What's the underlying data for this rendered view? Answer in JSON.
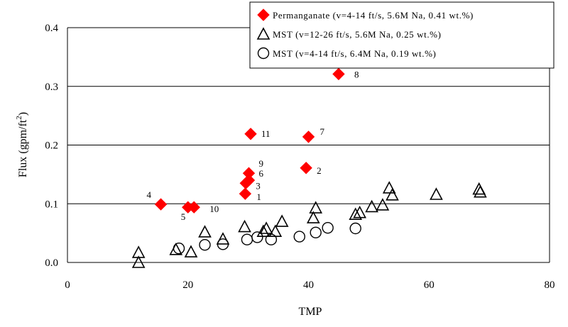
{
  "chart_data": {
    "type": "scatter",
    "xlabel": "TMP",
    "ylabel": "Flux (gpm/ft",
    "ylabel_sup": "2",
    "ylabel_end": ")",
    "xlim": [
      0,
      80
    ],
    "ylim": [
      0,
      0.4
    ],
    "x_ticks": [
      0,
      20,
      40,
      60,
      80
    ],
    "y_ticks": [
      0.0,
      0.1,
      0.2,
      0.3,
      0.4
    ],
    "x_tick_labels": [
      "0",
      "20",
      "40",
      "60",
      "80"
    ],
    "y_tick_labels": [
      "0.0",
      "0.1",
      "0.2",
      "0.3",
      "0.4"
    ],
    "grid": "horizontal",
    "legend_position": "top-right",
    "series": [
      {
        "name": "Permanganate (v=4-14 ft/s, 5.6M Na, 0.41 wt.%)",
        "marker": "diamond",
        "color": "#ff0000",
        "points": [
          {
            "x": 29.5,
            "y": 0.117,
            "label": "1"
          },
          {
            "x": 39.6,
            "y": 0.161,
            "label": "2"
          },
          {
            "x": 29.6,
            "y": 0.135,
            "label": "3"
          },
          {
            "x": 15.5,
            "y": 0.099,
            "label": "4"
          },
          {
            "x": 20.0,
            "y": 0.094,
            "label": "5"
          },
          {
            "x": 30.1,
            "y": 0.14,
            "label": "6"
          },
          {
            "x": 40.0,
            "y": 0.214,
            "label": "7"
          },
          {
            "x": 45.0,
            "y": 0.321,
            "label": "8"
          },
          {
            "x": 30.1,
            "y": 0.152,
            "label": "9"
          },
          {
            "x": 21.0,
            "y": 0.094,
            "label": "10"
          },
          {
            "x": 30.4,
            "y": 0.219,
            "label": "11"
          }
        ]
      },
      {
        "name": "MST (v=12-26 ft/s, 5.6M Na, 0.25 wt.%)",
        "marker": "triangle-open",
        "color": "#000000",
        "points": [
          {
            "x": 11.8,
            "y": 0.017
          },
          {
            "x": 11.8,
            "y": 0.0
          },
          {
            "x": 18.0,
            "y": 0.022
          },
          {
            "x": 20.5,
            "y": 0.018
          },
          {
            "x": 22.8,
            "y": 0.052
          },
          {
            "x": 25.8,
            "y": 0.04
          },
          {
            "x": 29.4,
            "y": 0.061
          },
          {
            "x": 32.5,
            "y": 0.053
          },
          {
            "x": 33.0,
            "y": 0.058
          },
          {
            "x": 34.5,
            "y": 0.053
          },
          {
            "x": 35.6,
            "y": 0.07
          },
          {
            "x": 40.8,
            "y": 0.076
          },
          {
            "x": 41.2,
            "y": 0.093
          },
          {
            "x": 47.8,
            "y": 0.082
          },
          {
            "x": 48.5,
            "y": 0.085
          },
          {
            "x": 50.5,
            "y": 0.095
          },
          {
            "x": 52.3,
            "y": 0.098
          },
          {
            "x": 53.4,
            "y": 0.127
          },
          {
            "x": 53.9,
            "y": 0.115
          },
          {
            "x": 61.2,
            "y": 0.116
          },
          {
            "x": 68.3,
            "y": 0.125
          },
          {
            "x": 68.5,
            "y": 0.12
          }
        ]
      },
      {
        "name": "MST (v=4-14 ft/s, 6.4M Na, 0.19 wt.%)",
        "marker": "circle-open",
        "color": "#000000",
        "points": [
          {
            "x": 18.5,
            "y": 0.024
          },
          {
            "x": 22.8,
            "y": 0.03
          },
          {
            "x": 25.8,
            "y": 0.031
          },
          {
            "x": 29.8,
            "y": 0.039
          },
          {
            "x": 31.5,
            "y": 0.043
          },
          {
            "x": 33.8,
            "y": 0.039
          },
          {
            "x": 38.5,
            "y": 0.044
          },
          {
            "x": 41.2,
            "y": 0.051
          },
          {
            "x": 43.2,
            "y": 0.059
          },
          {
            "x": 47.8,
            "y": 0.058
          }
        ]
      }
    ]
  }
}
